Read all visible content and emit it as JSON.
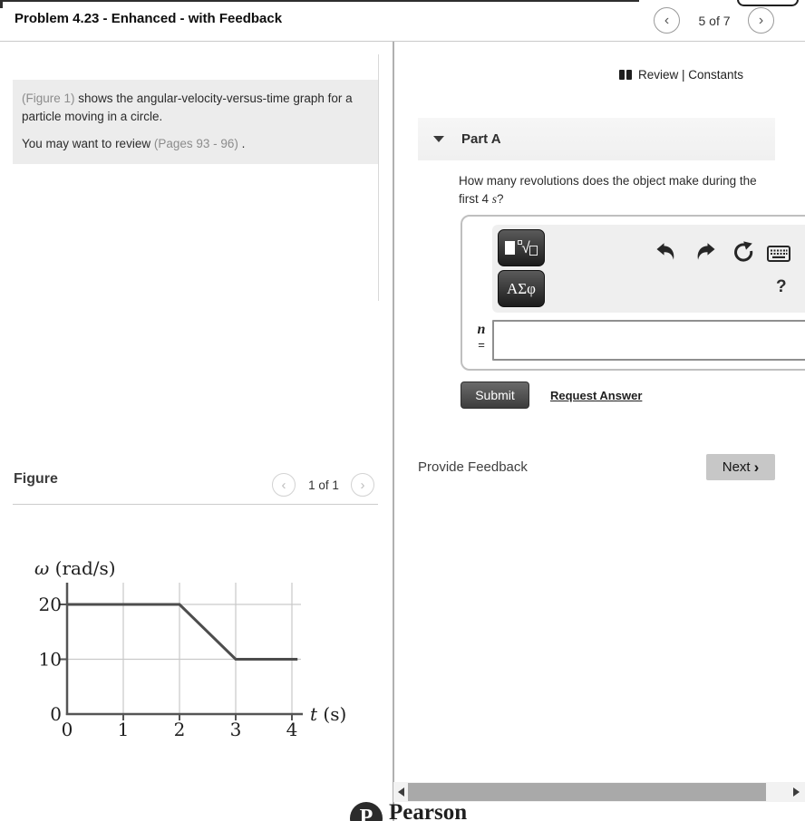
{
  "header": {
    "title": "Problem 4.23 - Enhanced - with Feedback",
    "pagination": "5 of 7",
    "prev_label": "‹",
    "next_label": "›"
  },
  "left": {
    "problem": {
      "figure_link": "(Figure 1)",
      "figure_text": " shows the angular-velocity-versus-time graph for a particle moving in a circle.",
      "review_prefix": "You may want to review ",
      "review_link": "(Pages 93 - 96)",
      "review_suffix": " ."
    },
    "figure_section": {
      "label": "Figure",
      "pagination": "1 of 1",
      "prev_label": "‹",
      "next_label": "›"
    }
  },
  "right": {
    "review_bar": "Review | Constants",
    "part": {
      "label": "Part A",
      "question_prefix": "How many revolutions does the object make during the first 4 ",
      "question_unit": "s",
      "question_suffix": "?"
    },
    "editor": {
      "greek_button": "ΑΣφ",
      "help": "?",
      "variable": "n",
      "equals": "=",
      "input_value": "",
      "toolbar_icons": [
        "math-templates",
        "greek-letters",
        "undo",
        "redo",
        "reset",
        "keyboard",
        "help"
      ]
    },
    "submit": "Submit",
    "request_answer": "Request Answer",
    "provide_feedback": "Provide Feedback",
    "next_button": "Next",
    "next_chevron": "›"
  },
  "footer": {
    "brand": "Pearson"
  },
  "chart_data": {
    "type": "line",
    "x": [
      0,
      2,
      3,
      4.1
    ],
    "y": [
      20,
      20,
      10,
      10
    ],
    "xticks": [
      0,
      1,
      2,
      3,
      4
    ],
    "yticks": [
      0,
      10,
      20
    ],
    "xlabel": "t (s)",
    "ylabel": "ω (rad/s)",
    "xlim": [
      0,
      4.1
    ],
    "ylim": [
      0,
      23.5
    ],
    "grid": true,
    "line_color": "#4d4d4d",
    "grid_color": "#c9c9c9",
    "axis_color": "#555555"
  }
}
